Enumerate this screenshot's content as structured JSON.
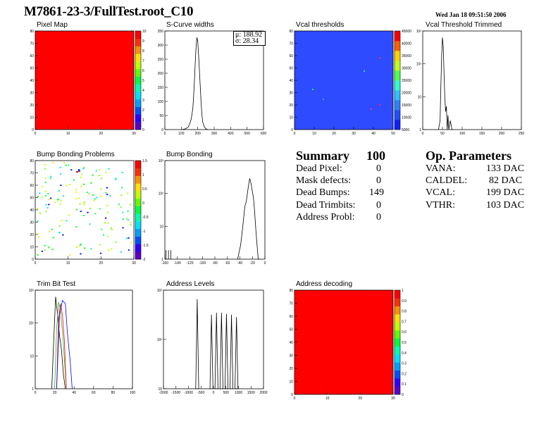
{
  "header": {
    "title": "M7861-23-3/FullTest.root_C10",
    "date": "Wed Jan 18 09:51:50 2006"
  },
  "panels": {
    "pixel_map": {
      "title": "Pixel Map"
    },
    "scurve": {
      "title": "S-Curve widths",
      "stats_mu": "μ: 188.92",
      "stats_sigma": "σ: 28.34"
    },
    "vcal_thr": {
      "title": "Vcal thresholds"
    },
    "vcal_trim": {
      "title": "Vcal Threshold Trimmed"
    },
    "bump_problems": {
      "title": "Bump Bonding Problems"
    },
    "bump_bonding": {
      "title": "Bump Bonding"
    },
    "trim_bit": {
      "title": "Trim Bit Test"
    },
    "addr_levels": {
      "title": "Address Levels"
    },
    "addr_decoding": {
      "title": "Address decoding"
    }
  },
  "summary": {
    "heading": "Summary",
    "total": "100",
    "rows": [
      {
        "label": "Dead Pixel:",
        "value": "0"
      },
      {
        "label": "Mask defects:",
        "value": "0"
      },
      {
        "label": "Dead Bumps:",
        "value": "149"
      },
      {
        "label": "Dead Trimbits:",
        "value": "0"
      },
      {
        "label": "Address Probl:",
        "value": "0"
      }
    ]
  },
  "op_params": {
    "heading": "Op. Parameters",
    "rows": [
      {
        "label": "VANA:",
        "value": "133 DAC"
      },
      {
        "label": "CALDEL:",
        "value": "82 DAC"
      },
      {
        "label": "VCAL:",
        "value": "199 DAC"
      },
      {
        "label": "VTHR:",
        "value": "103 DAC"
      }
    ]
  },
  "colors": {
    "map_red": "#ff0000",
    "map_blue": "#2f4bff",
    "hist_line": "#000000",
    "trim_green": "#22bb22",
    "trim_blue": "#0000ff",
    "trim_red": "#ff0000"
  },
  "chart_data": [
    {
      "id": "pixel_map",
      "type": "heatmap",
      "title": "Pixel Map",
      "x_ticks": [
        "0",
        "10",
        "20",
        "30"
      ],
      "y_ticks": [
        "0",
        "10",
        "20",
        "30",
        "40",
        "50",
        "60",
        "70",
        "80"
      ],
      "z_ticks": [
        "0",
        "1",
        "2",
        "3",
        "4",
        "5",
        "6",
        "7",
        "8",
        "9",
        "10"
      ],
      "uniform_value": 10
    },
    {
      "id": "scurve",
      "type": "line",
      "title": "S-Curve widths",
      "x_ticks": [
        "0",
        "100",
        "200",
        "300",
        "400",
        "500",
        "600"
      ],
      "y_ticks": [
        "0",
        "50",
        "100",
        "150",
        "200",
        "250",
        "300",
        "350"
      ],
      "x": [
        100,
        120,
        140,
        150,
        160,
        170,
        175,
        180,
        185,
        190,
        195,
        200,
        205,
        210,
        215,
        220,
        225,
        230,
        240,
        250,
        260
      ],
      "y": [
        0,
        2,
        8,
        20,
        40,
        80,
        130,
        190,
        260,
        320,
        355,
        340,
        290,
        230,
        170,
        110,
        60,
        30,
        10,
        3,
        0
      ]
    },
    {
      "id": "vcal_thr",
      "type": "heatmap",
      "title": "Vcal thresholds",
      "x_ticks": [
        "0",
        "10",
        "20",
        "30",
        "40",
        "50"
      ],
      "y_ticks": [
        "0",
        "10",
        "20",
        "30",
        "40",
        "50",
        "60",
        "70",
        "80"
      ],
      "z_ticks": [
        "5000",
        "10000",
        "15000",
        "20000",
        "25000",
        "30000",
        "35000",
        "40000",
        "45000"
      ]
    },
    {
      "id": "vcal_trim",
      "type": "line",
      "title": "Vcal Threshold Trimmed",
      "log_y": true,
      "x_ticks": [
        "0",
        "50",
        "100",
        "150",
        "200",
        "250"
      ],
      "y_ticks": [
        "1",
        "10",
        "10²",
        "10³"
      ],
      "x": [
        40,
        44,
        46,
        48,
        50,
        52,
        54,
        56,
        58,
        60,
        62,
        64,
        66,
        70,
        74,
        78
      ],
      "y": [
        1,
        2,
        30,
        300,
        1200,
        600,
        80,
        12,
        4,
        6,
        1,
        3,
        1,
        2,
        1,
        1
      ]
    },
    {
      "id": "bump_problems",
      "type": "scatter",
      "title": "Bump Bonding Problems",
      "x_ticks": [
        "0",
        "10",
        "20",
        "30"
      ],
      "y_ticks": [
        "0",
        "10",
        "20",
        "30",
        "40",
        "50",
        "60",
        "70",
        "80"
      ],
      "z_ticks": [
        "-2",
        "-1.5",
        "-1",
        "-0.5",
        "0",
        "0.5",
        "1",
        "1.5"
      ]
    },
    {
      "id": "bump_bonding",
      "type": "line",
      "title": "Bump Bonding",
      "log_y": true,
      "x_ticks": [
        "-160",
        "-140",
        "-120",
        "-100",
        "-80",
        "-60",
        "-40",
        "-20",
        "0"
      ],
      "y_ticks": [
        "1",
        "10",
        "10²",
        "10³"
      ],
      "x": [
        -40,
        -35,
        -32,
        -30,
        -28,
        -26,
        -24,
        -22,
        -20,
        -18,
        -16,
        -14,
        -12,
        -10,
        -8,
        -6,
        -4
      ],
      "y": [
        1,
        3,
        10,
        25,
        60,
        80,
        150,
        300,
        500,
        350,
        200,
        120,
        40,
        10,
        3,
        1,
        1
      ]
    },
    {
      "id": "trim_bit",
      "type": "line",
      "title": "Trim Bit Test",
      "log_y": true,
      "x_ticks": [
        "0",
        "20",
        "40",
        "60",
        "80",
        "100"
      ],
      "y_ticks": [
        "1",
        "10",
        "10²",
        "10³"
      ]
    },
    {
      "id": "addr_levels",
      "type": "bar",
      "title": "Address Levels",
      "log_y": true,
      "x_ticks": [
        "-2000",
        "-1500",
        "-1000",
        "-500",
        "0",
        "500",
        "1000",
        "1500",
        "2000"
      ],
      "y_ticks": [
        "10",
        "10²",
        "10³"
      ],
      "x": [
        -650,
        -80,
        120,
        320,
        520,
        720,
        920
      ],
      "y": [
        1000,
        300,
        350,
        350,
        320,
        300,
        250
      ]
    },
    {
      "id": "addr_decoding",
      "type": "heatmap",
      "title": "Address decoding",
      "x_ticks": [
        "0",
        "10",
        "20",
        "30"
      ],
      "y_ticks": [
        "0",
        "10",
        "20",
        "30",
        "40",
        "50",
        "60",
        "70",
        "80"
      ],
      "z_ticks": [
        "0",
        "0.1",
        "0.2",
        "0.3",
        "0.4",
        "0.5",
        "0.6",
        "0.7",
        "0.8",
        "0.9",
        "1"
      ],
      "uniform_value": 1
    }
  ]
}
